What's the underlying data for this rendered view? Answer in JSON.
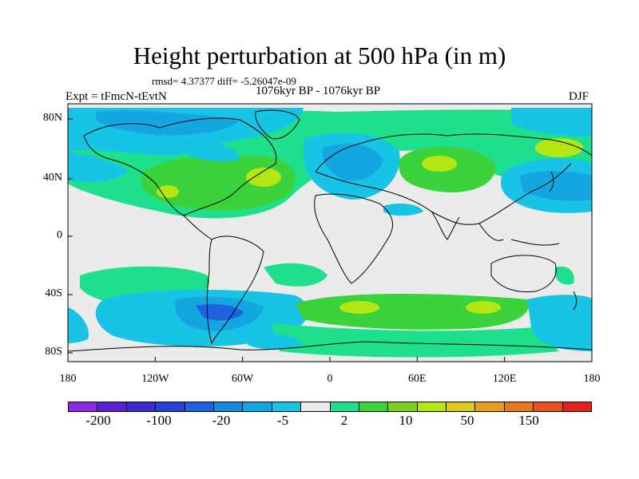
{
  "title": "Height perturbation at 500 hPa (in m)",
  "stats": "rmsd= 4.37377 diff= -5.26047e-09",
  "period": "1076kyr BP - 1076kyr BP",
  "expt": "Expt = tFmcN-tEvtN",
  "season": "DJF",
  "x_ticks": [
    "180",
    "120W",
    "60W",
    "0",
    "60E",
    "120E",
    "180"
  ],
  "y_ticks": [
    "80N",
    "40N",
    "0",
    "40S",
    "80S"
  ],
  "colorbar": {
    "colors": [
      "#8a2be2",
      "#5b1fd6",
      "#3c2ad0",
      "#2640d8",
      "#1f62e0",
      "#1a86dc",
      "#14a6e0",
      "#18c4e6",
      "#ebebeb",
      "#1ee08c",
      "#3cd23c",
      "#7ad21e",
      "#b4e614",
      "#dcc81e",
      "#e6a01e",
      "#e6781e",
      "#e6501e",
      "#e61e1e"
    ],
    "labels": [
      "-200",
      "-100",
      "-20",
      "-5",
      "2",
      "10",
      "50",
      "150"
    ]
  },
  "colors": {
    "background": "#ebebeb",
    "green": "#1ee08c",
    "lime": "#3cd23c",
    "yellow": "#b4e614",
    "cyan": "#18c4e6",
    "blue": "#14a6e0",
    "deepblue": "#1f62e0"
  }
}
